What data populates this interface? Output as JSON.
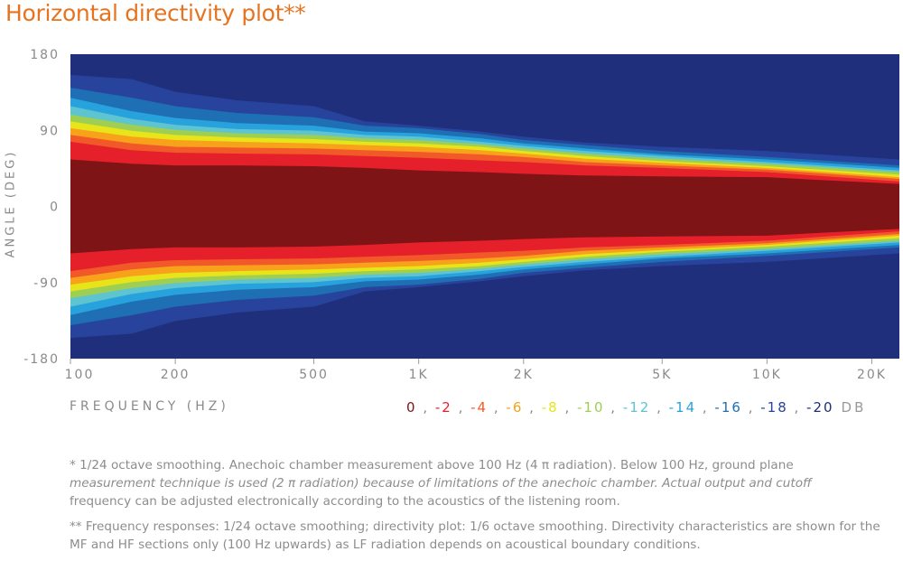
{
  "title": "Horizontal directivity plot**",
  "chart_data": {
    "type": "heatmap",
    "title": "Horizontal directivity plot**",
    "xlabel": "FREQUENCY (HZ)",
    "ylabel": "ANGLE (DEG)",
    "x_scale": "log",
    "xlim": [
      100,
      24000
    ],
    "ylim": [
      -180,
      180
    ],
    "x_ticks": [
      {
        "value": 100,
        "label": "100"
      },
      {
        "value": 200,
        "label": "200"
      },
      {
        "value": 500,
        "label": "500"
      },
      {
        "value": 1000,
        "label": "1K"
      },
      {
        "value": 2000,
        "label": "2K"
      },
      {
        "value": 5000,
        "label": "5K"
      },
      {
        "value": 10000,
        "label": "10K"
      },
      {
        "value": 20000,
        "label": "20K"
      }
    ],
    "y_ticks": [
      {
        "value": 180,
        "label": "180"
      },
      {
        "value": 90,
        "label": "90"
      },
      {
        "value": 0,
        "label": "0"
      },
      {
        "value": -90,
        "label": "-90"
      },
      {
        "value": -180,
        "label": "-180"
      }
    ],
    "levels": [
      {
        "label": "0",
        "color": "#7e1416"
      },
      {
        "label": "-2",
        "color": "#e5202b"
      },
      {
        "label": "-4",
        "color": "#f15a28"
      },
      {
        "label": "-6",
        "color": "#f8a11b"
      },
      {
        "label": "-8",
        "color": "#e7e51a"
      },
      {
        "label": "-10",
        "color": "#9fcf52"
      },
      {
        "label": "-12",
        "color": "#5ec4cf"
      },
      {
        "label": "-14",
        "color": "#28a2dc"
      },
      {
        "label": "-16",
        "color": "#1f6fb4"
      },
      {
        "label": "-18",
        "color": "#27439b"
      },
      {
        "label": "-20",
        "color": "#1f2f7c"
      }
    ],
    "level_unit": "DB",
    "background_color": "#1f2f7c",
    "contours": [
      {
        "level": "-18",
        "points": [
          [
            100,
            155
          ],
          [
            150,
            150
          ],
          [
            200,
            135
          ],
          [
            300,
            125
          ],
          [
            500,
            118
          ],
          [
            700,
            100
          ],
          [
            1000,
            95
          ],
          [
            1500,
            88
          ],
          [
            2000,
            82
          ],
          [
            3000,
            75
          ],
          [
            5000,
            70
          ],
          [
            10000,
            65
          ],
          [
            24000,
            55
          ]
        ]
      },
      {
        "level": "-16",
        "points": [
          [
            100,
            140
          ],
          [
            150,
            128
          ],
          [
            200,
            118
          ],
          [
            300,
            110
          ],
          [
            500,
            105
          ],
          [
            700,
            95
          ],
          [
            1000,
            92
          ],
          [
            1500,
            85
          ],
          [
            2000,
            78
          ],
          [
            3000,
            72
          ],
          [
            5000,
            65
          ],
          [
            10000,
            58
          ],
          [
            24000,
            48
          ]
        ]
      },
      {
        "level": "-14",
        "points": [
          [
            100,
            128
          ],
          [
            150,
            112
          ],
          [
            200,
            104
          ],
          [
            300,
            98
          ],
          [
            500,
            95
          ],
          [
            700,
            88
          ],
          [
            1000,
            86
          ],
          [
            1500,
            80
          ],
          [
            2000,
            74
          ],
          [
            3000,
            68
          ],
          [
            5000,
            61
          ],
          [
            10000,
            55
          ],
          [
            24000,
            45
          ]
        ]
      },
      {
        "level": "-12",
        "points": [
          [
            100,
            118
          ],
          [
            150,
            103
          ],
          [
            200,
            96
          ],
          [
            300,
            91
          ],
          [
            500,
            89
          ],
          [
            700,
            84
          ],
          [
            1000,
            82
          ],
          [
            1500,
            76
          ],
          [
            2000,
            71
          ],
          [
            3000,
            65
          ],
          [
            5000,
            59
          ],
          [
            10000,
            52
          ],
          [
            24000,
            42
          ]
        ]
      },
      {
        "level": "-10",
        "points": [
          [
            100,
            108
          ],
          [
            150,
            96
          ],
          [
            200,
            90
          ],
          [
            300,
            86
          ],
          [
            500,
            84
          ],
          [
            700,
            80
          ],
          [
            1000,
            78
          ],
          [
            1500,
            73
          ],
          [
            2000,
            68
          ],
          [
            3000,
            62
          ],
          [
            5000,
            56
          ],
          [
            10000,
            50
          ],
          [
            24000,
            40
          ]
        ]
      },
      {
        "level": "-8",
        "points": [
          [
            100,
            100
          ],
          [
            150,
            89
          ],
          [
            200,
            84
          ],
          [
            300,
            81
          ],
          [
            500,
            79
          ],
          [
            700,
            76
          ],
          [
            1000,
            74
          ],
          [
            1500,
            70
          ],
          [
            2000,
            65
          ],
          [
            3000,
            59
          ],
          [
            5000,
            53
          ],
          [
            10000,
            47
          ],
          [
            24000,
            37
          ]
        ]
      },
      {
        "level": "-6",
        "points": [
          [
            100,
            92
          ],
          [
            150,
            82
          ],
          [
            200,
            78
          ],
          [
            300,
            76
          ],
          [
            500,
            74
          ],
          [
            700,
            72
          ],
          [
            1000,
            70
          ],
          [
            1500,
            66
          ],
          [
            2000,
            62
          ],
          [
            3000,
            56
          ],
          [
            5000,
            51
          ],
          [
            10000,
            45
          ],
          [
            24000,
            34
          ]
        ]
      },
      {
        "level": "-4",
        "points": [
          [
            100,
            84
          ],
          [
            150,
            74
          ],
          [
            200,
            70
          ],
          [
            300,
            69
          ],
          [
            500,
            68
          ],
          [
            700,
            66
          ],
          [
            1000,
            64
          ],
          [
            1500,
            61
          ],
          [
            2000,
            58
          ],
          [
            3000,
            52
          ],
          [
            5000,
            48
          ],
          [
            10000,
            43
          ],
          [
            24000,
            32
          ]
        ]
      },
      {
        "level": "-2",
        "points": [
          [
            100,
            76
          ],
          [
            150,
            66
          ],
          [
            200,
            63
          ],
          [
            300,
            62
          ],
          [
            500,
            61
          ],
          [
            700,
            59
          ],
          [
            1000,
            57
          ],
          [
            1500,
            54
          ],
          [
            2000,
            52
          ],
          [
            3000,
            48
          ],
          [
            5000,
            45
          ],
          [
            10000,
            40
          ],
          [
            24000,
            29
          ]
        ]
      },
      {
        "level": "0",
        "points": [
          [
            100,
            55
          ],
          [
            150,
            50
          ],
          [
            200,
            48
          ],
          [
            300,
            48
          ],
          [
            500,
            47
          ],
          [
            700,
            45
          ],
          [
            1000,
            42
          ],
          [
            1500,
            40
          ],
          [
            2000,
            38
          ],
          [
            3000,
            36
          ],
          [
            5000,
            35
          ],
          [
            10000,
            34
          ],
          [
            24000,
            26
          ]
        ]
      }
    ],
    "grid": false
  },
  "legend_sep": ",",
  "footnotes": {
    "note1_plain": "* 1/24 octave smoothing. Anechoic chamber measurement above 100 Hz (4 π radiation). Below 100 Hz, ground plane",
    "note1_italic": "measurement technique is used (2 π radiation) because of limitations of the anechoic chamber. Actual output and cutoff",
    "note1_end": "frequency can be adjusted electronically according to the acoustics of the listening room.",
    "note2": "** Frequency responses: 1/24 octave smoothing; directivity plot: 1/6 octave smoothing. Directivity characteristics are shown for the MF and HF sections only (100 Hz upwards) as LF radiation depends on acoustical boundary conditions."
  }
}
